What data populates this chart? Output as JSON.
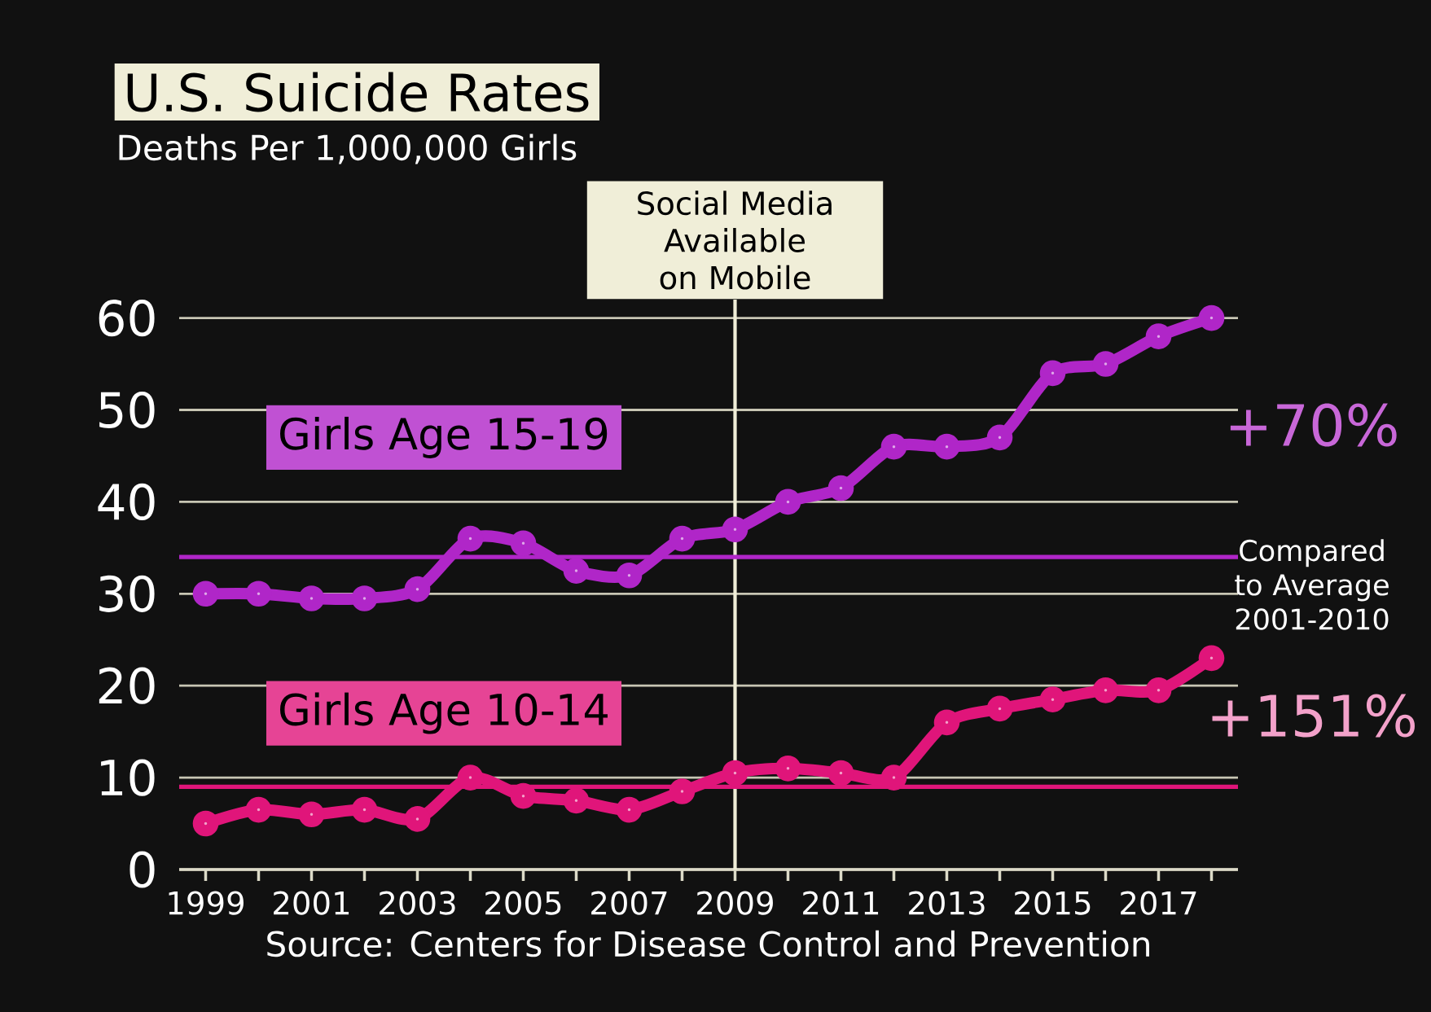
{
  "chart_data": {
    "type": "line",
    "title": "U.S. Suicide Rates",
    "subtitle": "Deaths Per 1,000,000 Girls",
    "x": [
      1999,
      2000,
      2001,
      2002,
      2003,
      2004,
      2005,
      2006,
      2007,
      2008,
      2009,
      2010,
      2011,
      2012,
      2013,
      2014,
      2015,
      2016,
      2017,
      2018
    ],
    "series": [
      {
        "name": "Girls Age 15-19",
        "color": "#b026c8",
        "values": [
          30,
          30,
          29.5,
          29.5,
          30.5,
          36,
          35.5,
          32.5,
          32,
          36,
          37,
          40,
          41.5,
          46,
          46,
          47,
          54,
          55,
          58,
          60
        ]
      },
      {
        "name": "Girls Age 10-14",
        "color": "#e0157a",
        "values": [
          5,
          6.5,
          6,
          6.5,
          5.5,
          10,
          8,
          7.5,
          6.5,
          8.5,
          10.5,
          11,
          10.5,
          10,
          16,
          17.5,
          18.5,
          19.5,
          19.5,
          23
        ]
      }
    ],
    "xlim": [
      1998.5,
      2018.5
    ],
    "ylim": [
      0,
      62
    ],
    "xticks": [
      1999,
      {
        "value": 2000,
        "label": null
      },
      2001,
      {
        "value": 2002,
        "label": null
      },
      2003,
      {
        "value": 2004,
        "label": null
      },
      2005,
      {
        "value": 2006,
        "label": null
      },
      2007,
      {
        "value": 2008,
        "label": null
      },
      2009,
      {
        "value": 2010,
        "label": null
      },
      2011,
      {
        "value": 2012,
        "label": null
      },
      2013,
      {
        "value": 2014,
        "label": null
      },
      2015,
      {
        "value": 2016,
        "label": null
      },
      2017,
      {
        "value": 2018,
        "label": null
      }
    ],
    "yticks": [
      0,
      10,
      20,
      30,
      40,
      50,
      60
    ],
    "grid": "y",
    "marker": "circle",
    "line_style": "solid",
    "ref_lines": [
      {
        "axis": "x",
        "value": 2009,
        "label": "Social Media Available on Mobile",
        "color": "#f0eed8"
      },
      {
        "axis": "y",
        "value": 34,
        "label": null,
        "color": "#b026c8"
      },
      {
        "axis": "y",
        "value": 9,
        "label": null,
        "color": "#e0157a"
      }
    ],
    "annotations": [
      "+70%",
      "Compared to Average 2001-2010",
      "+151%",
      "Source: Centers for Disease Control and Prevention"
    ]
  }
}
